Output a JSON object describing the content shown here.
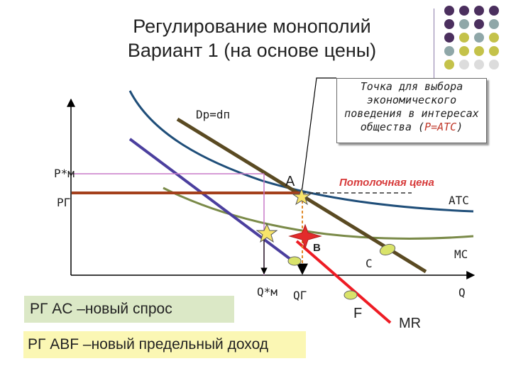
{
  "title": {
    "line1": "Регулирование монополий",
    "line2": "Вариант 1 (на основе цены)"
  },
  "callout": {
    "line1": "Точка для выбора",
    "line2": "экономического",
    "line3": "поведения в интересах",
    "line4_prefix": "общества (",
    "line4_formula": "P=ATC",
    "line4_suffix": ")"
  },
  "labels": {
    "demand": "Dр=dп",
    "p_monopoly": "P*м",
    "p_gov": "PГ",
    "point_a": "A",
    "point_b": "B",
    "point_c": "C",
    "point_f": "F",
    "ceiling": "Потолочная цена",
    "atc": "ATC",
    "mc": "MC",
    "mr": "MR",
    "q_monopoly": "Q*м",
    "q_gov": "QГ",
    "q_axis": "Q"
  },
  "notes": {
    "ac_demand": "PГ AC –новый спрос",
    "abf_revenue": "PГ ABF –новый предельный доход"
  },
  "colors": {
    "atc_curve": "#1f4e79",
    "mc_curve": "#7a8a48",
    "demand_line": "#5a4a22",
    "mr_line": "#4b3f9e",
    "price_ceiling_line": "#a4401c",
    "new_mr_line": "#ee1c24",
    "guide_line": "#c97ac8",
    "ceiling_text": "#d73b3b",
    "star_fill": "#f7e46a",
    "callout_accent": "#c0392b",
    "note_box_green": "#dbe8c6",
    "note_box_yellow": "#fbf7b4"
  },
  "decor_dots": [
    "#4b2f5e",
    "#4b2f5e",
    "#4b2f5e",
    "#4b2f5e",
    "#4b2f5e",
    "#8fa7a8",
    "#4b2f5e",
    "#8fa7a8",
    "#4b2f5e",
    "#c4c24a",
    "#8fa7a8",
    "#c4c24a",
    "#8fa7a8",
    "#c4c24a",
    "#c4c24a",
    "#c4c24a",
    "#c4c24a",
    "#dcdcdc",
    "#dcdcdc",
    "#dcdcdc"
  ]
}
